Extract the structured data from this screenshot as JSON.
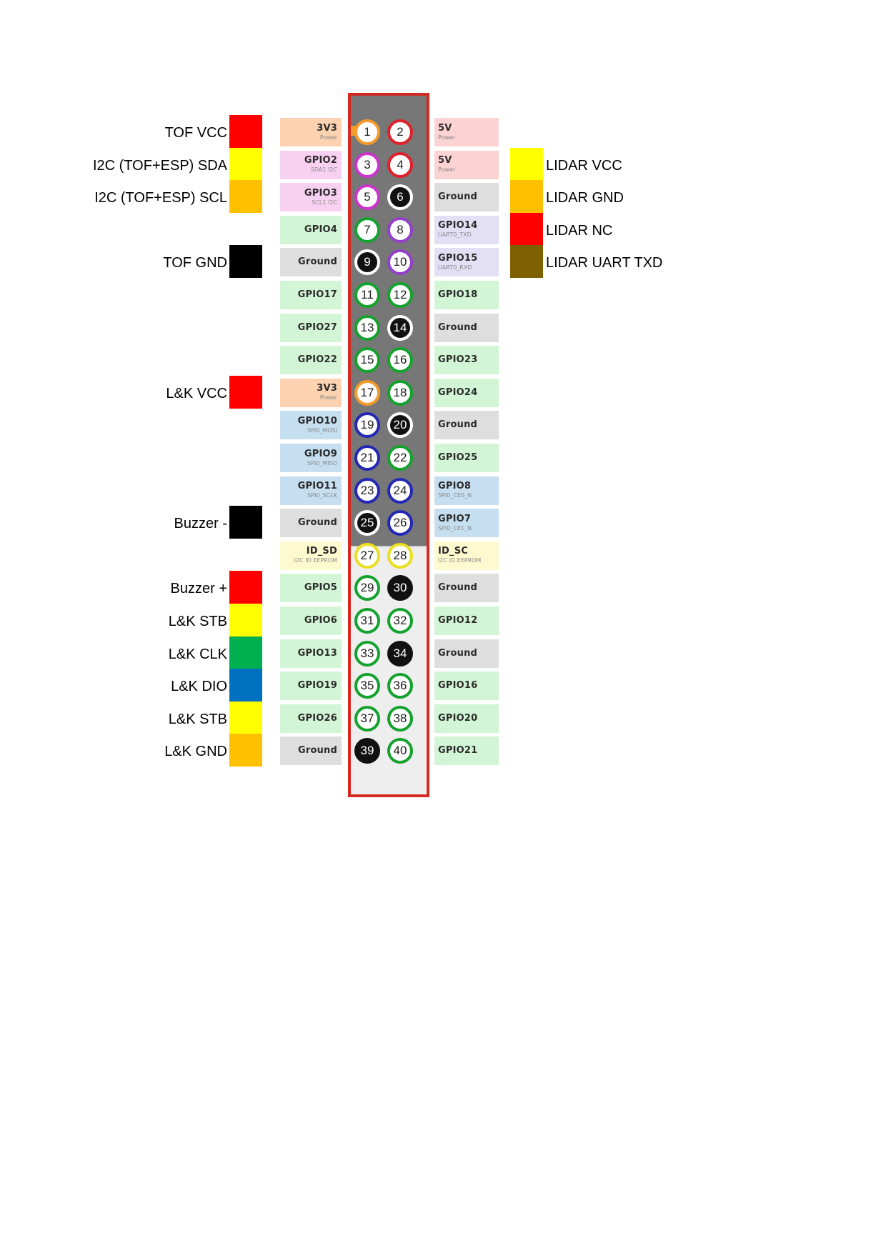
{
  "colors": {
    "power_bg": "#fcd2b0",
    "power_ring": "#f39c2c",
    "fivev_bg": "#fbd3d2",
    "fivev_ring": "#e0202a",
    "i2c_bg": "#f8d0f1",
    "i2c_ring": "#cc33cc",
    "gpio_bg": "#d2f5d5",
    "gpio_ring": "#14a22e",
    "uart_bg": "#e3e0f6",
    "uart_ring": "#9340c8",
    "ground_bg": "#dedede",
    "ground_ring": "#000000",
    "spi_bg": "#c5def0",
    "spi_ring": "#2428b4",
    "eeprom_bg": "#fefad0",
    "eeprom_ring": "#ecdf22"
  },
  "pins": [
    {
      "num": "1",
      "name": "3V3",
      "sub": "Power",
      "kind": "power",
      "fill": "#ffffff",
      "text": "#222222"
    },
    {
      "num": "2",
      "name": "5V",
      "sub": "Power",
      "kind": "fivev",
      "fill": "#ffffff",
      "text": "#222222"
    },
    {
      "num": "3",
      "name": "GPIO2",
      "sub": "SDA1 I2C",
      "kind": "i2c",
      "fill": "#ffffff",
      "text": "#222222"
    },
    {
      "num": "4",
      "name": "5V",
      "sub": "Power",
      "kind": "fivev",
      "fill": "#ffffff",
      "text": "#222222"
    },
    {
      "num": "5",
      "name": "GPIO3",
      "sub": "SCL1 I2C",
      "kind": "i2c",
      "fill": "#ffffff",
      "text": "#222222"
    },
    {
      "num": "6",
      "name": "Ground",
      "sub": "",
      "kind": "ground",
      "fill": "#111111",
      "text": "#ffffff"
    },
    {
      "num": "7",
      "name": "GPIO4",
      "sub": "",
      "kind": "gpio",
      "fill": "#ffffff",
      "text": "#222222"
    },
    {
      "num": "8",
      "name": "GPIO14",
      "sub": "UART0_TXD",
      "kind": "uart",
      "fill": "#ffffff",
      "text": "#222222"
    },
    {
      "num": "9",
      "name": "Ground",
      "sub": "",
      "kind": "ground",
      "fill": "#111111",
      "text": "#ffffff"
    },
    {
      "num": "10",
      "name": "GPIO15",
      "sub": "UART0_RXD",
      "kind": "uart",
      "fill": "#ffffff",
      "text": "#222222"
    },
    {
      "num": "11",
      "name": "GPIO17",
      "sub": "",
      "kind": "gpio",
      "fill": "#ffffff",
      "text": "#222222"
    },
    {
      "num": "12",
      "name": "GPIO18",
      "sub": "",
      "kind": "gpio",
      "fill": "#ffffff",
      "text": "#222222"
    },
    {
      "num": "13",
      "name": "GPIO27",
      "sub": "",
      "kind": "gpio",
      "fill": "#ffffff",
      "text": "#222222"
    },
    {
      "num": "14",
      "name": "Ground",
      "sub": "",
      "kind": "ground",
      "fill": "#111111",
      "text": "#ffffff"
    },
    {
      "num": "15",
      "name": "GPIO22",
      "sub": "",
      "kind": "gpio",
      "fill": "#ffffff",
      "text": "#222222"
    },
    {
      "num": "16",
      "name": "GPIO23",
      "sub": "",
      "kind": "gpio",
      "fill": "#ffffff",
      "text": "#222222"
    },
    {
      "num": "17",
      "name": "3V3",
      "sub": "Power",
      "kind": "power",
      "fill": "#ffffff",
      "text": "#222222"
    },
    {
      "num": "18",
      "name": "GPIO24",
      "sub": "",
      "kind": "gpio",
      "fill": "#ffffff",
      "text": "#222222"
    },
    {
      "num": "19",
      "name": "GPIO10",
      "sub": "SPI0_MOSI",
      "kind": "spi",
      "fill": "#ffffff",
      "text": "#222222"
    },
    {
      "num": "20",
      "name": "Ground",
      "sub": "",
      "kind": "ground",
      "fill": "#111111",
      "text": "#ffffff"
    },
    {
      "num": "21",
      "name": "GPIO9",
      "sub": "SPI0_MISO",
      "kind": "spi",
      "fill": "#ffffff",
      "text": "#222222"
    },
    {
      "num": "22",
      "name": "GPIO25",
      "sub": "",
      "kind": "gpio",
      "fill": "#ffffff",
      "text": "#222222"
    },
    {
      "num": "23",
      "name": "GPIO11",
      "sub": "SPI0_SCLK",
      "kind": "spi",
      "fill": "#ffffff",
      "text": "#222222"
    },
    {
      "num": "24",
      "name": "GPIO8",
      "sub": "SPI0_CE0_N",
      "kind": "spi",
      "fill": "#ffffff",
      "text": "#222222"
    },
    {
      "num": "25",
      "name": "Ground",
      "sub": "",
      "kind": "ground",
      "fill": "#111111",
      "text": "#ffffff"
    },
    {
      "num": "26",
      "name": "GPIO7",
      "sub": "SPI0_CE1_N",
      "kind": "spi",
      "fill": "#ffffff",
      "text": "#222222"
    },
    {
      "num": "27",
      "name": "ID_SD",
      "sub": "I2C ID EEPROM",
      "kind": "eeprom",
      "fill": "#ffffff",
      "text": "#222222"
    },
    {
      "num": "28",
      "name": "ID_SC",
      "sub": "I2C ID EEPROM",
      "kind": "eeprom",
      "fill": "#ffffff",
      "text": "#222222"
    },
    {
      "num": "29",
      "name": "GPIO5",
      "sub": "",
      "kind": "gpio",
      "fill": "#ffffff",
      "text": "#222222"
    },
    {
      "num": "30",
      "name": "Ground",
      "sub": "",
      "kind": "ground",
      "fill": "#111111",
      "text": "#ffffff"
    },
    {
      "num": "31",
      "name": "GPIO6",
      "sub": "",
      "kind": "gpio",
      "fill": "#ffffff",
      "text": "#222222"
    },
    {
      "num": "32",
      "name": "GPIO12",
      "sub": "",
      "kind": "gpio",
      "fill": "#ffffff",
      "text": "#222222"
    },
    {
      "num": "33",
      "name": "GPIO13",
      "sub": "",
      "kind": "gpio",
      "fill": "#ffffff",
      "text": "#222222"
    },
    {
      "num": "34",
      "name": "Ground",
      "sub": "",
      "kind": "ground",
      "fill": "#111111",
      "text": "#ffffff"
    },
    {
      "num": "35",
      "name": "GPIO19",
      "sub": "",
      "kind": "gpio",
      "fill": "#ffffff",
      "text": "#222222"
    },
    {
      "num": "36",
      "name": "GPIO16",
      "sub": "",
      "kind": "gpio",
      "fill": "#ffffff",
      "text": "#222222"
    },
    {
      "num": "37",
      "name": "GPIO26",
      "sub": "",
      "kind": "gpio",
      "fill": "#ffffff",
      "text": "#222222"
    },
    {
      "num": "38",
      "name": "GPIO20",
      "sub": "",
      "kind": "gpio",
      "fill": "#ffffff",
      "text": "#222222"
    },
    {
      "num": "39",
      "name": "Ground",
      "sub": "",
      "kind": "ground",
      "fill": "#111111",
      "text": "#ffffff"
    },
    {
      "num": "40",
      "name": "GPIO21",
      "sub": "",
      "kind": "gpio",
      "fill": "#ffffff",
      "text": "#222222"
    }
  ],
  "annotations": {
    "left": [
      {
        "row": 1,
        "text": "TOF VCC",
        "color": "#ff0000"
      },
      {
        "row": 2,
        "text": "I2C (TOF+ESP) SDA",
        "color": "#ffff00"
      },
      {
        "row": 3,
        "text": "I2C (TOF+ESP) SCL",
        "color": "#ffc000"
      },
      {
        "row": 5,
        "text": "TOF GND",
        "color": "#000000"
      },
      {
        "row": 9,
        "text": "L&K VCC",
        "color": "#ff0000"
      },
      {
        "row": 13,
        "text": "Buzzer -",
        "color": "#000000"
      },
      {
        "row": 15,
        "text": "Buzzer +",
        "color": "#ff0000"
      },
      {
        "row": 16,
        "text": "L&K STB",
        "color": "#ffff00"
      },
      {
        "row": 17,
        "text": "L&K CLK",
        "color": "#00b050"
      },
      {
        "row": 18,
        "text": "L&K DIO",
        "color": "#0070c0"
      },
      {
        "row": 19,
        "text": "L&K STB",
        "color": "#ffff00"
      },
      {
        "row": 20,
        "text": "L&K GND",
        "color": "#ffc000"
      }
    ],
    "right": [
      {
        "row": 2,
        "text": "LIDAR VCC",
        "color": "#ffff00"
      },
      {
        "row": 3,
        "text": "LIDAR GND",
        "color": "#ffc000"
      },
      {
        "row": 4,
        "text": "LIDAR NC",
        "color": "#ff0000"
      },
      {
        "row": 5,
        "text": "LIDAR UART TXD",
        "color": "#7f6000"
      }
    ]
  }
}
